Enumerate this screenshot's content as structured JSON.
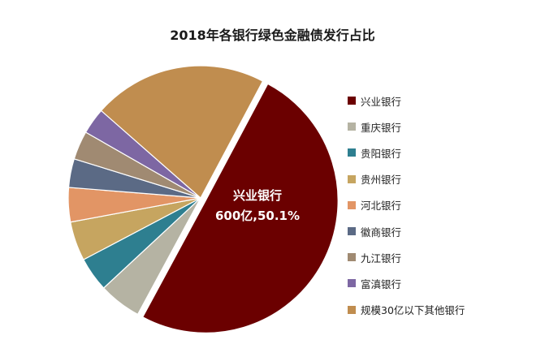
{
  "chart_data": {
    "type": "pie",
    "title": "2018年各银行绿色金融债发行占比",
    "slices": [
      {
        "name": "兴业银行",
        "value": 50.1,
        "color": "#6b0000"
      },
      {
        "name": "重庆银行",
        "value": 5.2,
        "color": "#b5b3a3"
      },
      {
        "name": "贵阳银行",
        "value": 4.2,
        "color": "#2e7f90"
      },
      {
        "name": "贵州银行",
        "value": 4.8,
        "color": "#c6a560"
      },
      {
        "name": "河北银行",
        "value": 4.2,
        "color": "#e29565"
      },
      {
        "name": "徽商银行",
        "value": 3.5,
        "color": "#5b6a85"
      },
      {
        "name": "九江银行",
        "value": 3.5,
        "color": "#a08a72"
      },
      {
        "name": "富滇银行",
        "value": 3.2,
        "color": "#7d67a3"
      },
      {
        "name": "规模30亿以下其他银行",
        "value": 21.3,
        "color": "#c08d4f"
      }
    ],
    "annotation": {
      "line1": "兴业银行",
      "line2": "600亿,50.1%"
    },
    "legend_position": "right"
  }
}
